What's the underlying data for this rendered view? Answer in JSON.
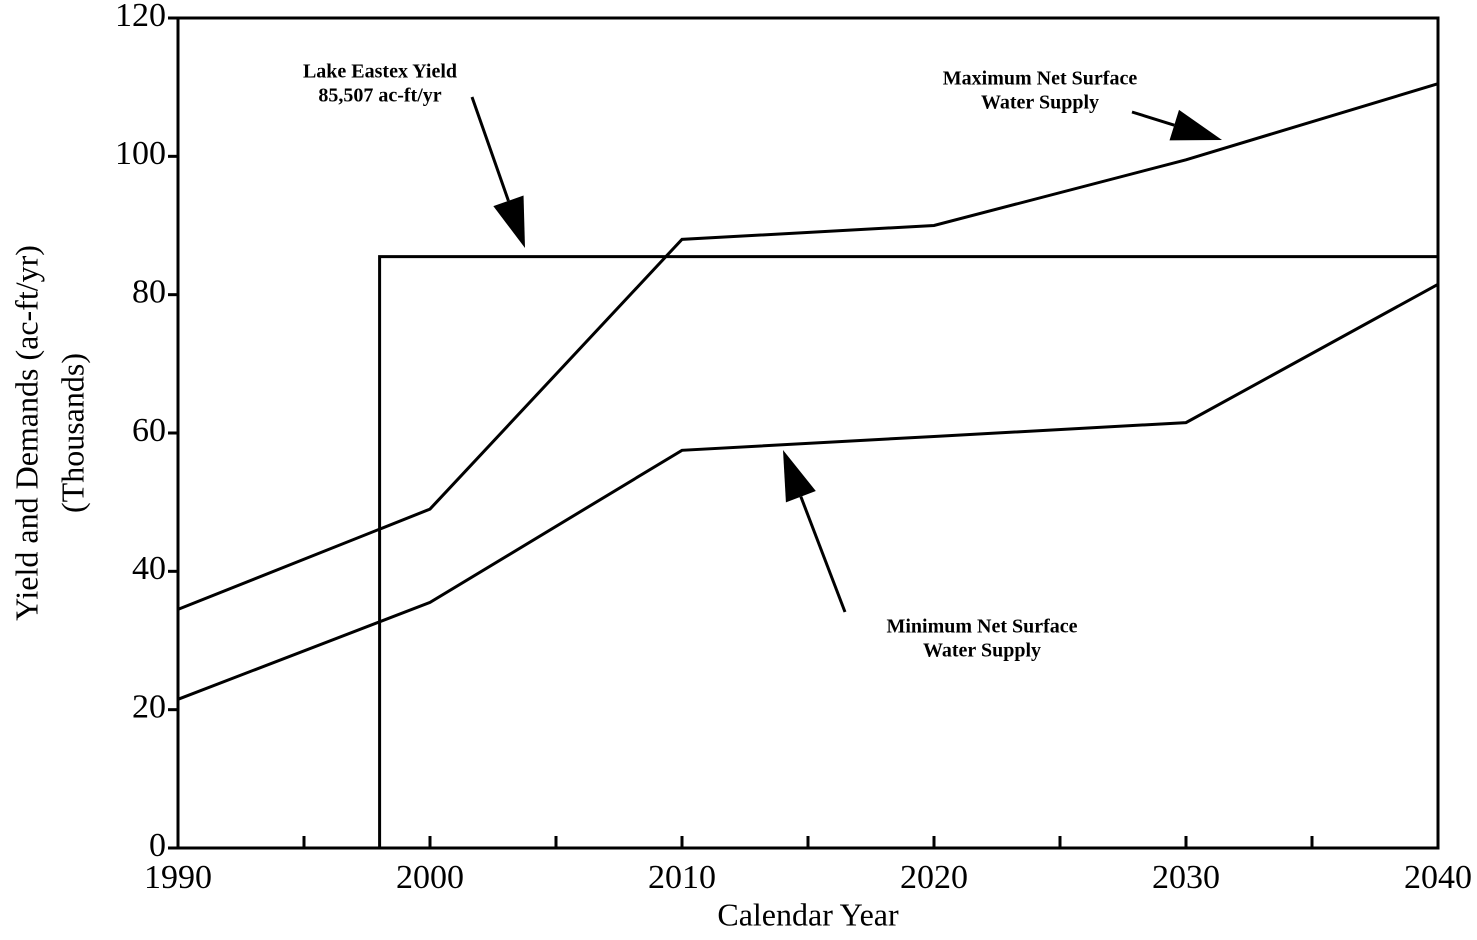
{
  "chart_data": {
    "type": "line",
    "x_label": "Calendar Year",
    "y_label": [
      "Yield and Demands (ac-ft/yr)",
      "(Thousands)"
    ],
    "x": [
      1990,
      2000,
      2010,
      2020,
      2030,
      2040
    ],
    "series": [
      {
        "name": "Maximum Net Surface Water Supply",
        "color": "#000000",
        "values": [
          34.5,
          49,
          88,
          90,
          99.5,
          110.5
        ]
      },
      {
        "name": "Minimum Net Surface Water Supply",
        "color": "#000000",
        "values": [
          21.5,
          35.5,
          57.5,
          59.5,
          61.5,
          81.5
        ]
      },
      {
        "name": "Lake Eastex Yield",
        "color": "#000000",
        "x": [
          1998,
          1998,
          2040
        ],
        "values": [
          0,
          85.507,
          85.507
        ]
      }
    ],
    "annotations": [
      {
        "lines": [
          "Lake Eastex Yield",
          "85,507 ac-ft/yr"
        ]
      },
      {
        "lines": [
          "Maximum Net Surface",
          "Water Supply"
        ]
      },
      {
        "lines": [
          "Minimum Net Surface",
          "Water Supply"
        ]
      }
    ],
    "xlim": [
      1990,
      2040
    ],
    "xticks": [
      1990,
      2000,
      2010,
      2020,
      2030,
      2040
    ],
    "xminorticks": [
      1995,
      2005,
      2015,
      2025,
      2035
    ],
    "ylim": [
      0,
      120
    ],
    "yticks": [
      0,
      20,
      40,
      60,
      80,
      100,
      120
    ]
  }
}
